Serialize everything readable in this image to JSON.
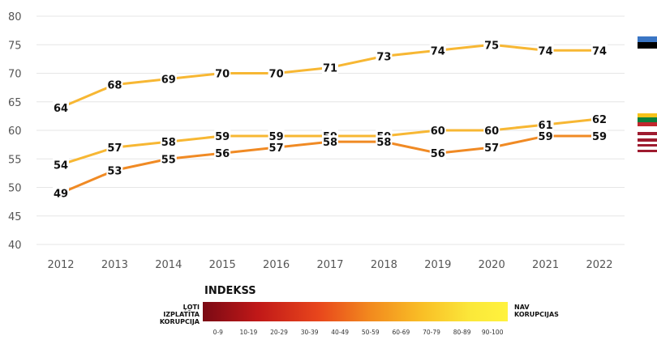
{
  "chart_data": {
    "type": "line",
    "x": [
      "2012",
      "2013",
      "2014",
      "2015",
      "2016",
      "2017",
      "2018",
      "2019",
      "2020",
      "2021",
      "2022"
    ],
    "ylim": [
      40,
      80
    ],
    "yticks": [
      "40",
      "45",
      "50",
      "55",
      "60",
      "65",
      "70",
      "75",
      "80"
    ],
    "grid": true,
    "series": [
      {
        "values": [
          64,
          68,
          69,
          70,
          70,
          71,
          73,
          74,
          75,
          74,
          74
        ],
        "color": "#f7b733"
      },
      {
        "values": [
          54,
          57,
          58,
          59,
          59,
          59,
          59,
          60,
          60,
          61,
          62
        ],
        "color": "#f7b733"
      },
      {
        "values": [
          49,
          53,
          55,
          56,
          57,
          58,
          58,
          56,
          57,
          59,
          59
        ],
        "color": "#f08a24"
      }
    ]
  },
  "legend": {
    "title": "INDEKSS",
    "left_label": "ĻOTI IZPLATĪTA KORUPCIJA",
    "right_label": "NAV KORUPCIJAS",
    "ranges": [
      "0-9",
      "10-19",
      "20-29",
      "30-39",
      "40-49",
      "50-59",
      "60-69",
      "70-79",
      "80-89",
      "90-100"
    ]
  },
  "flags": [
    {
      "name": "estonia-flag",
      "colors": [
        "#3a75c4",
        "#000000",
        "#ffffff"
      ]
    },
    {
      "name": "lithuania-flag",
      "colors": [
        "#f6c21a",
        "#0a7f3c",
        "#c1272d"
      ]
    },
    {
      "name": "latvia-flag",
      "colors": [
        "#9e1b2f",
        "#ffffff",
        "#9e1b2f"
      ]
    },
    {
      "name": "latvia-flag-2",
      "colors": [
        "#9e1b2f",
        "#ffffff",
        "#9e1b2f"
      ]
    }
  ]
}
